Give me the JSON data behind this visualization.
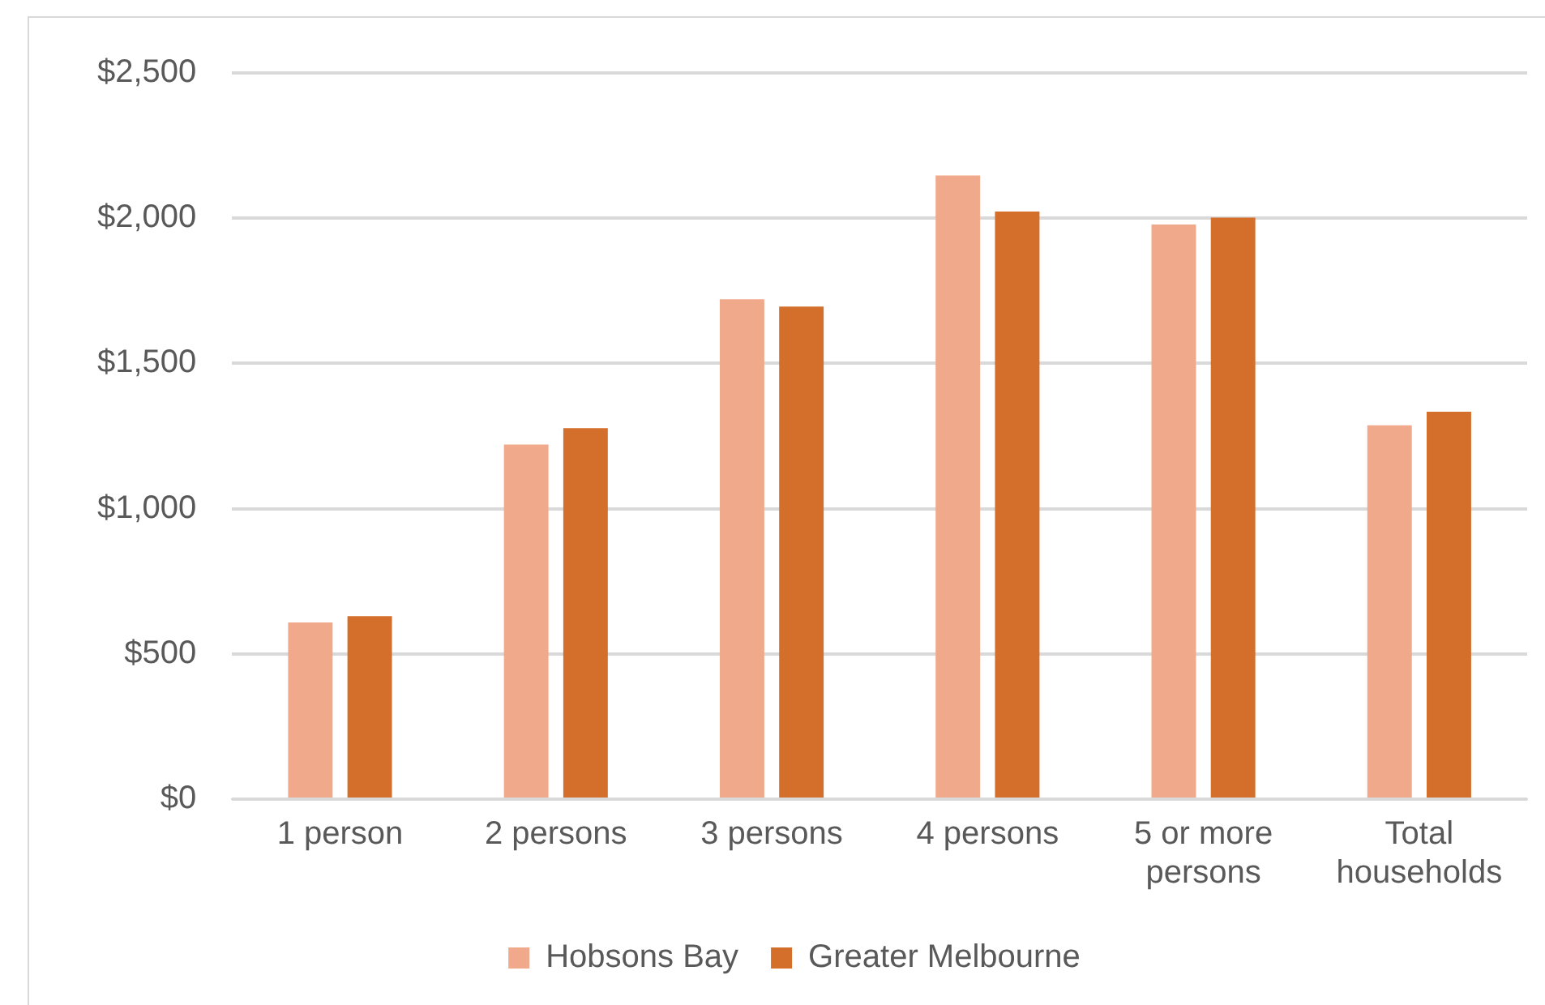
{
  "chart_data": {
    "type": "bar",
    "categories": [
      "1 person",
      "2 persons",
      "3 persons",
      "4 persons",
      "5 or more persons",
      "Total households"
    ],
    "series": [
      {
        "name": "Hobsons Bay",
        "color": "#f0a98a",
        "values": [
          608,
          1221,
          1721,
          2147,
          1978,
          1287
        ]
      },
      {
        "name": "Greater Melbourne",
        "color": "#d46f2b",
        "values": [
          630,
          1277,
          1696,
          2023,
          2002,
          1334
        ]
      }
    ],
    "ylim": [
      0,
      2500
    ],
    "yticks": [
      {
        "value": 0,
        "label": "$0"
      },
      {
        "value": 500,
        "label": "$500"
      },
      {
        "value": 1000,
        "label": "$1,000"
      },
      {
        "value": 1500,
        "label": "$1,500"
      },
      {
        "value": 2000,
        "label": "$2,000"
      },
      {
        "value": 2500,
        "label": "$2,500"
      }
    ],
    "grid": "y",
    "legend": "bottom"
  }
}
